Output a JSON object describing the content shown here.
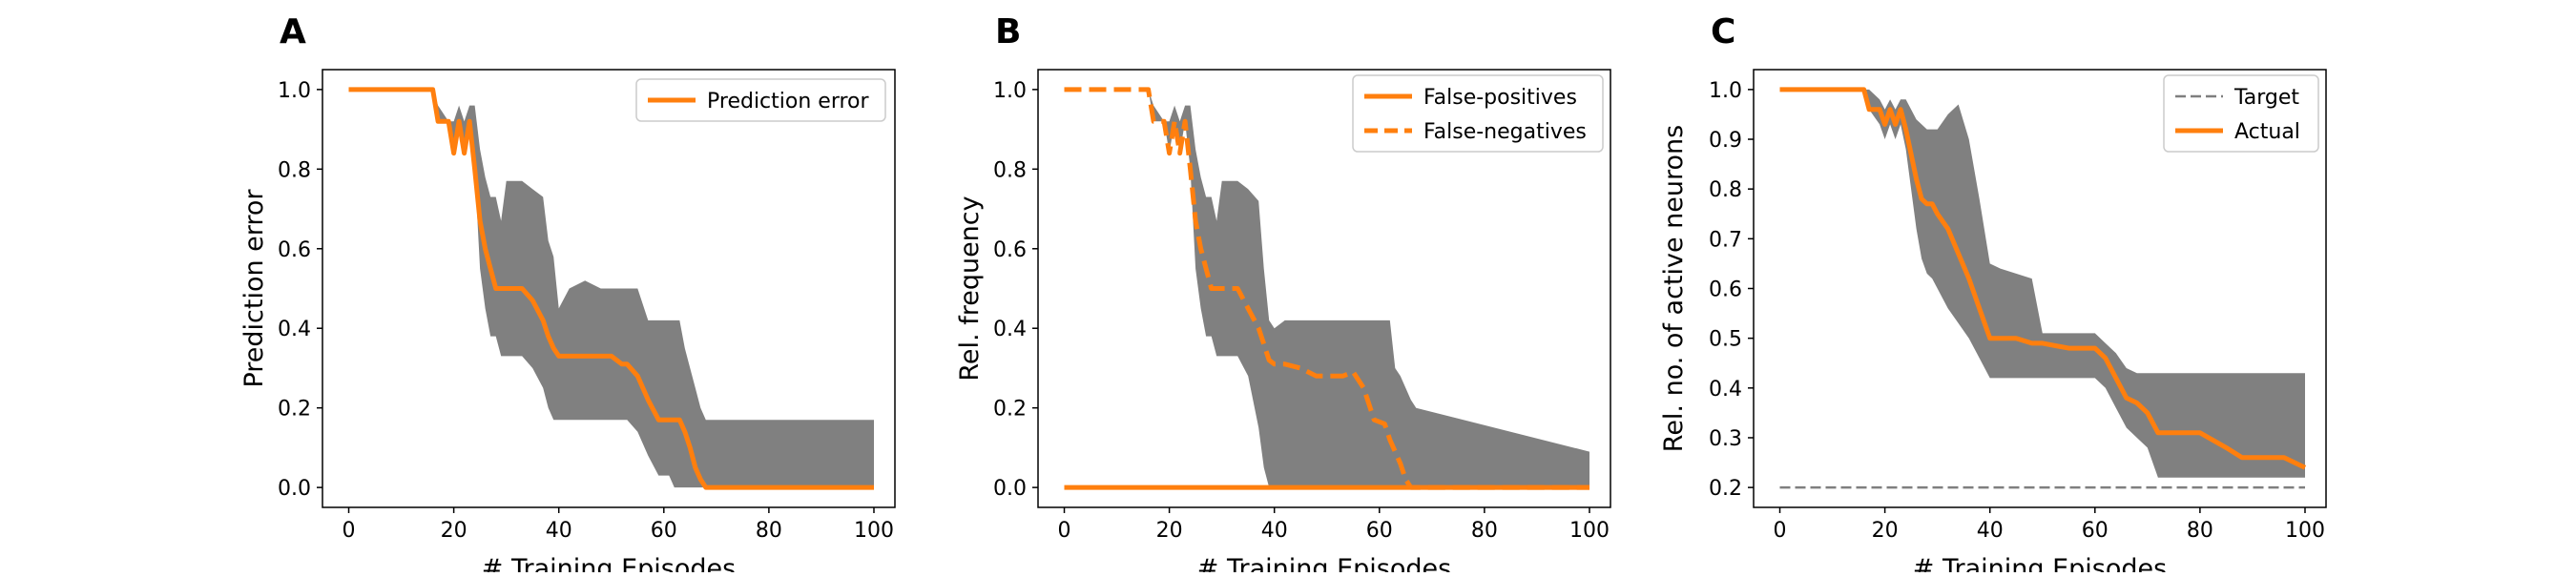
{
  "colors": {
    "orange": "#ff7f0e",
    "band": "#808080",
    "target": "#7f7f7f",
    "frame": "#000000"
  },
  "chart_data": [
    {
      "type": "line",
      "panel_label": "A",
      "xlabel": "# Training Episodes",
      "ylabel": "Prediction error",
      "xlim": [
        -5,
        104
      ],
      "ylim": [
        -0.05,
        1.05
      ],
      "xticks": [
        "0",
        "20",
        "40",
        "60",
        "80",
        "100"
      ],
      "yticks": [
        "0.0",
        "0.2",
        "0.4",
        "0.6",
        "0.8",
        "1.0"
      ],
      "legend_position": "top-right",
      "series": [
        {
          "name": "Prediction error",
          "style": "solid",
          "x": [
            0,
            16,
            17,
            19,
            20,
            21,
            22,
            23,
            24,
            25,
            26,
            27,
            28,
            29,
            30,
            31,
            33,
            35,
            37,
            38,
            39,
            40,
            42,
            45,
            48,
            50,
            52,
            53,
            55,
            57,
            59,
            61,
            62,
            63,
            64,
            65,
            66,
            67,
            68,
            100
          ],
          "y": [
            1.0,
            1.0,
            0.92,
            0.92,
            0.84,
            0.92,
            0.84,
            0.92,
            0.8,
            0.67,
            0.6,
            0.55,
            0.5,
            0.5,
            0.5,
            0.5,
            0.5,
            0.47,
            0.42,
            0.38,
            0.35,
            0.33,
            0.33,
            0.33,
            0.33,
            0.33,
            0.31,
            0.31,
            0.28,
            0.22,
            0.17,
            0.17,
            0.17,
            0.17,
            0.14,
            0.1,
            0.05,
            0.02,
            0.0,
            0.0
          ]
        }
      ],
      "bands": [
        {
          "x": [
            0,
            16,
            17,
            19,
            20,
            21,
            22,
            23,
            24,
            25,
            26,
            27,
            28,
            29,
            30,
            31,
            33,
            35,
            37,
            38,
            39,
            40,
            42,
            45,
            48,
            50,
            52,
            53,
            55,
            57,
            59,
            61,
            62,
            63,
            64,
            65,
            66,
            67,
            68,
            100
          ],
          "low": [
            1.0,
            1.0,
            0.92,
            0.92,
            0.84,
            0.92,
            0.84,
            0.92,
            0.8,
            0.55,
            0.45,
            0.38,
            0.38,
            0.33,
            0.33,
            0.33,
            0.33,
            0.3,
            0.25,
            0.2,
            0.17,
            0.17,
            0.17,
            0.17,
            0.17,
            0.17,
            0.17,
            0.17,
            0.14,
            0.08,
            0.03,
            0.03,
            0.0,
            0.0,
            0.0,
            0.0,
            0.0,
            0.0,
            0.0,
            0.0
          ],
          "high": [
            1.0,
            1.0,
            0.96,
            0.92,
            0.92,
            0.96,
            0.92,
            0.96,
            0.96,
            0.85,
            0.78,
            0.73,
            0.73,
            0.67,
            0.77,
            0.77,
            0.77,
            0.75,
            0.73,
            0.62,
            0.58,
            0.45,
            0.5,
            0.52,
            0.5,
            0.5,
            0.5,
            0.5,
            0.5,
            0.42,
            0.42,
            0.42,
            0.42,
            0.42,
            0.35,
            0.3,
            0.25,
            0.2,
            0.17,
            0.17
          ]
        }
      ]
    },
    {
      "type": "line",
      "panel_label": "B",
      "xlabel": "# Training Episodes",
      "ylabel": "Rel. frequency",
      "xlim": [
        -5,
        104
      ],
      "ylim": [
        -0.05,
        1.05
      ],
      "xticks": [
        "0",
        "20",
        "40",
        "60",
        "80",
        "100"
      ],
      "yticks": [
        "0.0",
        "0.2",
        "0.4",
        "0.6",
        "0.8",
        "1.0"
      ],
      "legend_position": "top-right",
      "series": [
        {
          "name": "False-positives",
          "style": "solid",
          "x": [
            0,
            100
          ],
          "y": [
            0.0,
            0.0
          ]
        },
        {
          "name": "False-negatives",
          "style": "dashed",
          "x": [
            0,
            16,
            17,
            19,
            20,
            21,
            22,
            23,
            24,
            25,
            26,
            27,
            28,
            29,
            30,
            31,
            33,
            35,
            37,
            38,
            39,
            40,
            42,
            45,
            48,
            50,
            52,
            53,
            55,
            57,
            59,
            61,
            62,
            63,
            64,
            65,
            66,
            67,
            100
          ],
          "y": [
            1.0,
            1.0,
            0.92,
            0.92,
            0.84,
            0.92,
            0.84,
            0.92,
            0.8,
            0.67,
            0.6,
            0.55,
            0.5,
            0.5,
            0.5,
            0.5,
            0.5,
            0.45,
            0.4,
            0.36,
            0.32,
            0.31,
            0.31,
            0.3,
            0.28,
            0.28,
            0.28,
            0.28,
            0.29,
            0.25,
            0.17,
            0.16,
            0.12,
            0.09,
            0.06,
            0.02,
            0.0,
            0.0,
            0.0
          ]
        }
      ],
      "bands": [
        {
          "x": [
            0,
            16,
            17,
            19,
            20,
            21,
            22,
            23,
            24,
            25,
            26,
            27,
            28,
            29,
            30,
            31,
            33,
            35,
            37,
            38,
            39,
            40,
            42,
            45,
            48,
            50,
            52,
            53,
            55,
            57,
            59,
            61,
            62,
            63,
            64,
            65,
            66,
            67,
            100
          ],
          "low": [
            1.0,
            1.0,
            0.92,
            0.92,
            0.84,
            0.92,
            0.84,
            0.92,
            0.8,
            0.55,
            0.45,
            0.38,
            0.38,
            0.33,
            0.33,
            0.33,
            0.33,
            0.28,
            0.15,
            0.05,
            0.0,
            0.0,
            0.0,
            0.0,
            0.0,
            0.0,
            0.0,
            0.0,
            0.0,
            0.0,
            0.0,
            0.0,
            0.0,
            0.0,
            0.0,
            0.0,
            0.0,
            0.0,
            0.0
          ],
          "high": [
            1.0,
            1.0,
            0.96,
            0.92,
            0.92,
            0.96,
            0.92,
            0.96,
            0.96,
            0.85,
            0.78,
            0.73,
            0.73,
            0.67,
            0.77,
            0.77,
            0.77,
            0.75,
            0.72,
            0.55,
            0.42,
            0.4,
            0.42,
            0.42,
            0.42,
            0.42,
            0.42,
            0.42,
            0.42,
            0.42,
            0.42,
            0.42,
            0.42,
            0.3,
            0.28,
            0.25,
            0.22,
            0.2,
            0.09
          ]
        }
      ]
    },
    {
      "type": "line",
      "panel_label": "C",
      "xlabel": "# Training Episodes",
      "ylabel": "Rel. no. of active neurons",
      "xlim": [
        -5,
        104
      ],
      "ylim": [
        0.16,
        1.04
      ],
      "xticks": [
        "0",
        "20",
        "40",
        "60",
        "80",
        "100"
      ],
      "yticks": [
        "0.2",
        "0.3",
        "0.4",
        "0.5",
        "0.6",
        "0.7",
        "0.8",
        "0.9",
        "1.0"
      ],
      "legend_position": "top-right",
      "series": [
        {
          "name": "Target",
          "style": "dashed-gray",
          "x": [
            0,
            100
          ],
          "y": [
            0.2,
            0.2
          ]
        },
        {
          "name": "Actual",
          "style": "solid",
          "x": [
            0,
            16,
            17,
            19,
            20,
            21,
            22,
            23,
            24,
            25,
            26,
            27,
            28,
            29,
            30,
            32,
            34,
            36,
            38,
            40,
            42,
            45,
            48,
            50,
            55,
            58,
            60,
            62,
            64,
            66,
            68,
            70,
            72,
            75,
            80,
            85,
            88,
            92,
            96,
            100
          ],
          "y": [
            1.0,
            1.0,
            0.96,
            0.96,
            0.93,
            0.96,
            0.93,
            0.96,
            0.92,
            0.87,
            0.82,
            0.78,
            0.77,
            0.77,
            0.75,
            0.72,
            0.67,
            0.62,
            0.56,
            0.5,
            0.5,
            0.5,
            0.49,
            0.49,
            0.48,
            0.48,
            0.48,
            0.46,
            0.42,
            0.38,
            0.37,
            0.35,
            0.31,
            0.31,
            0.31,
            0.28,
            0.26,
            0.26,
            0.26,
            0.24
          ]
        }
      ],
      "bands": [
        {
          "x": [
            0,
            16,
            17,
            19,
            20,
            21,
            22,
            23,
            24,
            25,
            26,
            27,
            28,
            29,
            30,
            32,
            34,
            36,
            38,
            40,
            42,
            45,
            48,
            50,
            55,
            58,
            60,
            62,
            64,
            66,
            68,
            70,
            72,
            75,
            80,
            85,
            88,
            92,
            96,
            100
          ],
          "low": [
            1.0,
            1.0,
            0.96,
            0.93,
            0.9,
            0.93,
            0.9,
            0.93,
            0.88,
            0.8,
            0.72,
            0.66,
            0.63,
            0.62,
            0.6,
            0.56,
            0.53,
            0.5,
            0.46,
            0.42,
            0.42,
            0.42,
            0.42,
            0.42,
            0.42,
            0.42,
            0.42,
            0.4,
            0.36,
            0.32,
            0.3,
            0.28,
            0.22,
            0.22,
            0.22,
            0.22,
            0.22,
            0.22,
            0.22,
            0.22
          ],
          "high": [
            1.0,
            1.0,
            1.0,
            0.98,
            0.96,
            0.98,
            0.96,
            0.98,
            0.98,
            0.96,
            0.94,
            0.93,
            0.92,
            0.92,
            0.92,
            0.95,
            0.97,
            0.9,
            0.78,
            0.65,
            0.64,
            0.63,
            0.62,
            0.51,
            0.51,
            0.51,
            0.51,
            0.49,
            0.47,
            0.44,
            0.43,
            0.43,
            0.43,
            0.43,
            0.43,
            0.43,
            0.43,
            0.43,
            0.43,
            0.43
          ]
        }
      ]
    }
  ]
}
